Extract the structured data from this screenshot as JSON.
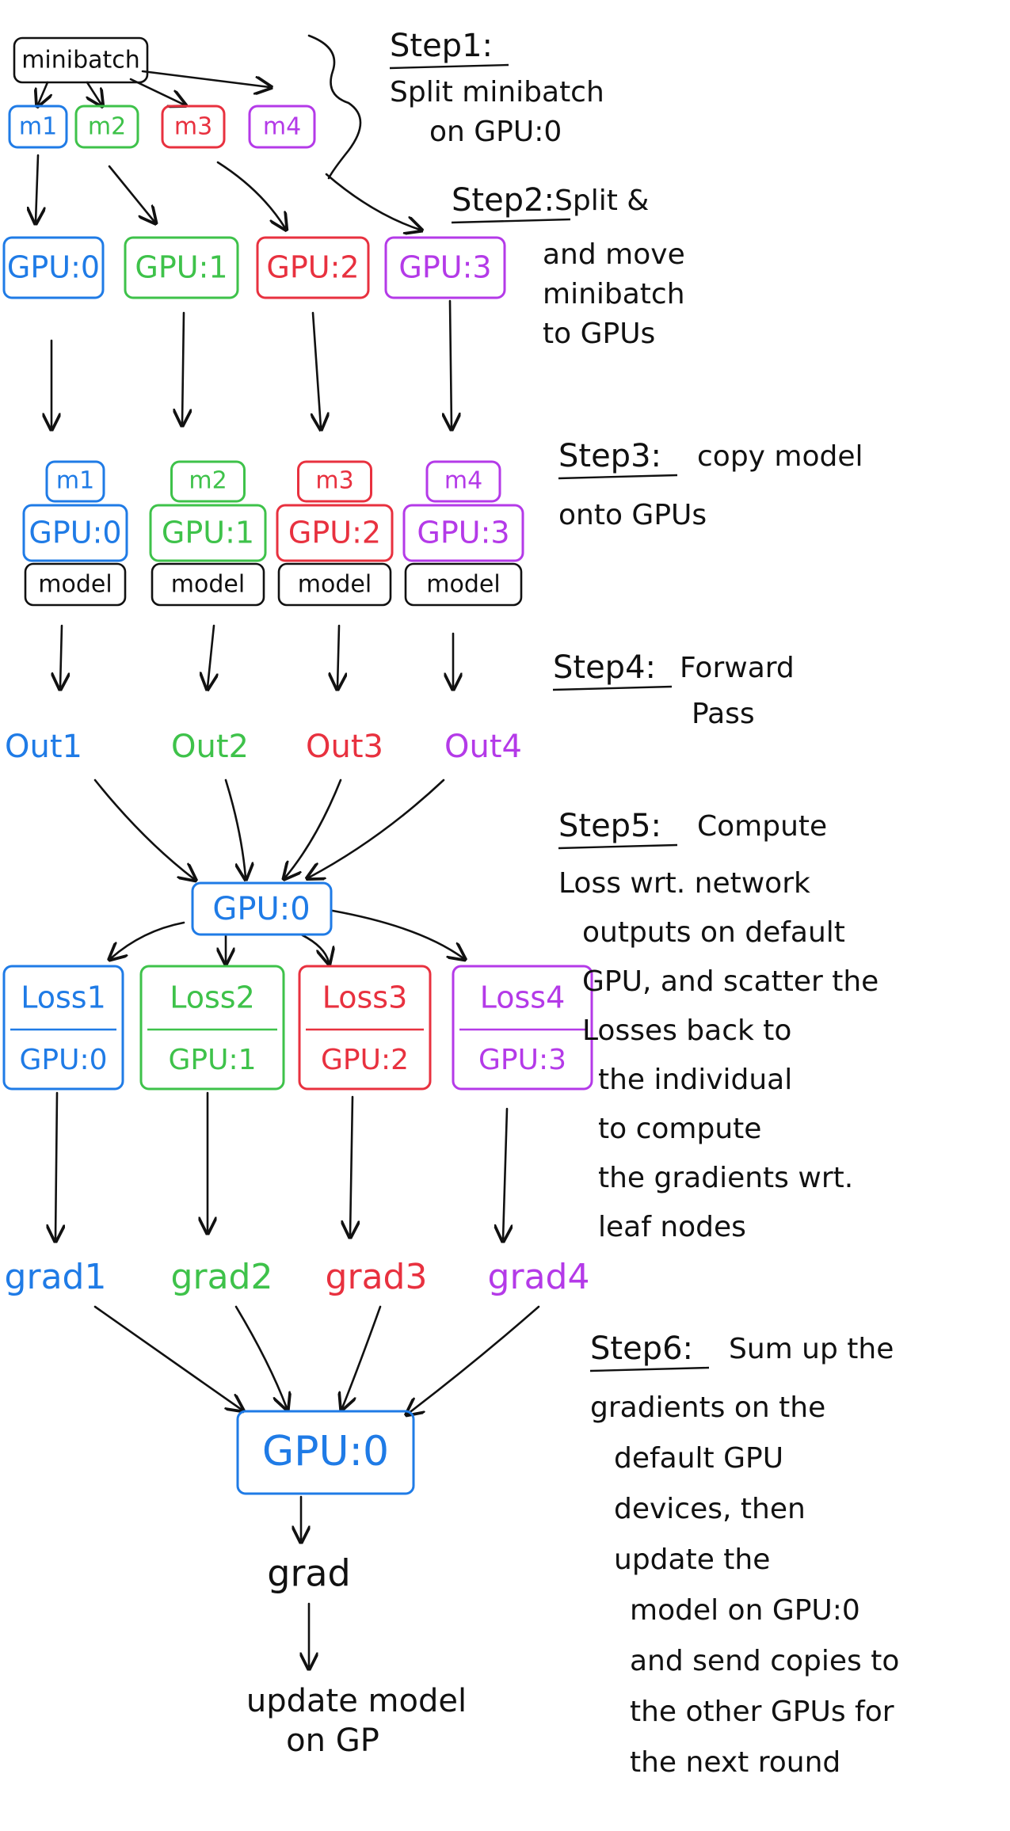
{
  "colors": {
    "blue": "#1f7be6",
    "green": "#3ec24a",
    "red": "#e8313f",
    "purple": "#b43ae8",
    "ink": "#111111"
  },
  "minibatch": {
    "label": "minibatch"
  },
  "micro_batches": [
    {
      "label": "m1",
      "color": "blue"
    },
    {
      "label": "m2",
      "color": "green"
    },
    {
      "label": "m3",
      "color": "red"
    },
    {
      "label": "m4",
      "color": "purple"
    }
  ],
  "gpus": [
    {
      "label": "GPU:0",
      "color": "blue"
    },
    {
      "label": "GPU:1",
      "color": "green"
    },
    {
      "label": "GPU:2",
      "color": "red"
    },
    {
      "label": "GPU:3",
      "color": "purple"
    }
  ],
  "model_label": "model",
  "outputs": [
    "Out1",
    "Out2",
    "Out3",
    "Out4"
  ],
  "gather_gpu": "GPU:0",
  "losses": [
    {
      "label": "Loss1",
      "gpu": "GPU:0"
    },
    {
      "label": "Loss2",
      "gpu": "GPU:1"
    },
    {
      "label": "Loss3",
      "gpu": "GPU:2"
    },
    {
      "label": "Loss4",
      "gpu": "GPU:3"
    }
  ],
  "grads": [
    "grad1",
    "grad2",
    "grad3",
    "grad4"
  ],
  "sum_gpu": "GPU:0",
  "grad_label": "grad",
  "update_label": [
    "update model",
    "on GP"
  ],
  "steps": [
    {
      "title": "Step1:",
      "lines": [
        "Split minibatch",
        "on GPU:0"
      ]
    },
    {
      "title": "Step2:",
      "lines": [
        "Split &",
        "and move",
        "minibatch",
        "to GPUs"
      ]
    },
    {
      "title": "Step3:",
      "lines": [
        "copy model",
        "onto GPUs"
      ]
    },
    {
      "title": "Step4:",
      "lines": [
        "Forward",
        "Pass"
      ]
    },
    {
      "title": "Step5:",
      "lines": [
        "Compute",
        "Loss wrt. network",
        "outputs on default",
        "GPU, and scatter the",
        "Losses back to",
        "the individual",
        "to compute",
        "the gradients wrt.",
        "leaf nodes"
      ]
    },
    {
      "title": "Step6:",
      "lines": [
        "Sum up the",
        "gradients on the",
        "default GPU",
        "devices, then",
        "update the",
        "model on GPU:0",
        "and send copies to",
        "the other GPUs for",
        "the next round"
      ]
    }
  ]
}
